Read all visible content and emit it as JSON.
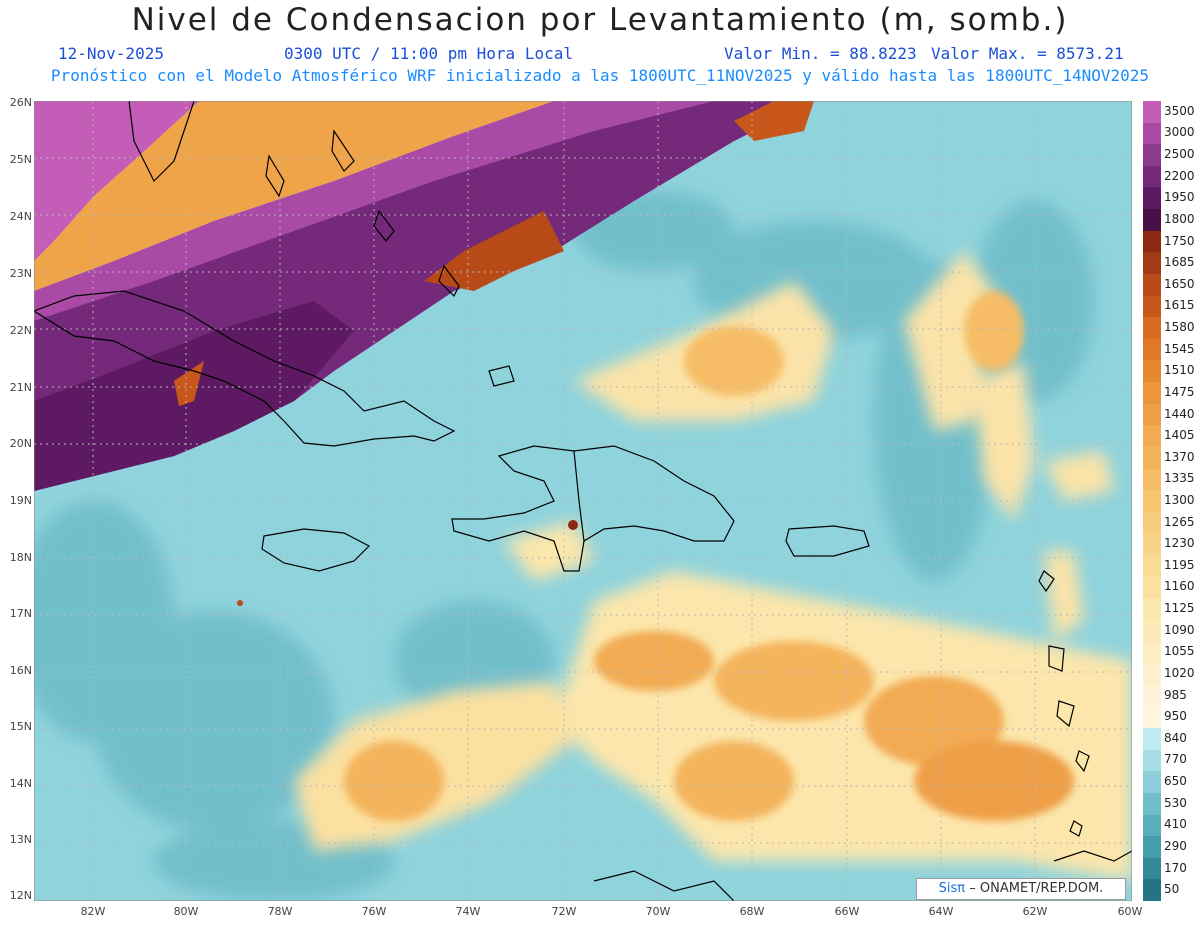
{
  "title": "Nivel de Condensacion por Levantamiento (m, somb.)",
  "date": "12-Nov-2025",
  "time": "0300 UTC / 11:00 pm Hora Local",
  "valmin": "Valor Min. = 88.8223",
  "valmax": "Valor Max. = 8573.21",
  "forecast_line": "Pronóstico con el Modelo Atmosférico WRF inicializado a las 1800UTC_11NOV2025 y válido hasta las  1800UTC_14NOV2025",
  "lat_labels": [
    "26N",
    "25N",
    "24N",
    "23N",
    "22N",
    "21N",
    "20N",
    "19N",
    "18N",
    "17N",
    "16N",
    "15N",
    "14N",
    "13N",
    "12N"
  ],
  "lon_labels": [
    "82W",
    "80W",
    "78W",
    "76W",
    "74W",
    "72W",
    "70W",
    "68W",
    "66W",
    "64W",
    "62W",
    "60W"
  ],
  "colorbar": {
    "levels": [
      "3500",
      "3000",
      "2500",
      "2200",
      "1950",
      "1800",
      "1750",
      "1685",
      "1650",
      "1615",
      "1580",
      "1545",
      "1510",
      "1475",
      "1440",
      "1405",
      "1370",
      "1335",
      "1300",
      "1265",
      "1230",
      "1195",
      "1160",
      "1125",
      "1090",
      "1055",
      "1020",
      "985",
      "950",
      "840",
      "770",
      "650",
      "530",
      "410",
      "290",
      "170",
      "50"
    ],
    "colors": [
      "#c45db8",
      "#a84aa6",
      "#8e3a91",
      "#74297a",
      "#5d1a62",
      "#4a0f44",
      "#8a2a12",
      "#a13a15",
      "#b84a18",
      "#c9571c",
      "#d86a22",
      "#e0782a",
      "#e68832",
      "#eb963c",
      "#ef9f47",
      "#f2ab52",
      "#f4b45c",
      "#f6bd66",
      "#f7c571",
      "#f8cc7c",
      "#f9d387",
      "#fadb93",
      "#fbe19f",
      "#fce6ab",
      "#fdeab7",
      "#fdedc2",
      "#fef0cc",
      "#fff2d6",
      "#fff5df",
      "#bfeaf0",
      "#a6dde6",
      "#8ccfdb",
      "#72bfcc",
      "#5aaebc",
      "#459cab",
      "#33889a",
      "#247387"
    ]
  },
  "map": {
    "ocean_color": "#8fd3dc",
    "land_outline_color": "#000000"
  },
  "logo_sis": "Sisπ",
  "logo_text": "– ONAMET/REP.DOM."
}
